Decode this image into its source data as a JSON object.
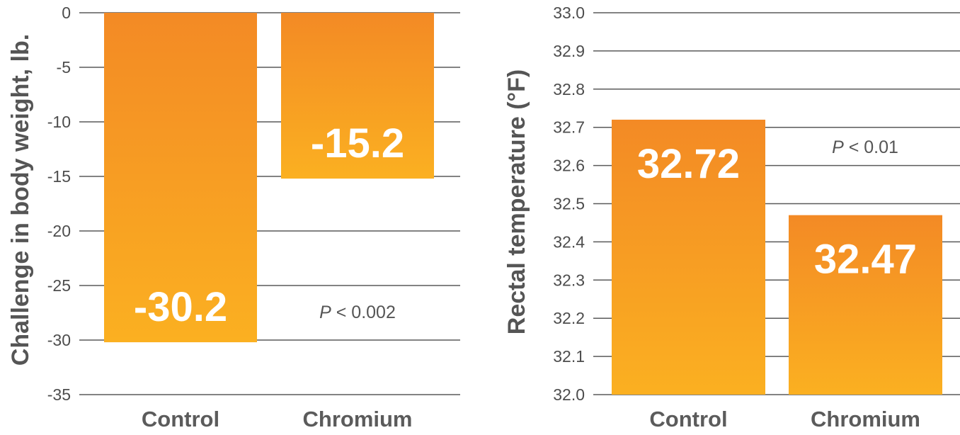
{
  "chart_data": [
    {
      "type": "bar",
      "categories": [
        "Control",
        "Chromium"
      ],
      "values": [
        -30.2,
        -15.2
      ],
      "data_labels": [
        "-30.2",
        "-15.2"
      ],
      "ylabel": "Challenge in body weight, lb.",
      "ylim": [
        -35,
        0
      ],
      "yticks": [
        "0",
        "-5",
        "-10",
        "-15",
        "-20",
        "-25",
        "-30",
        "-35"
      ],
      "annotation": {
        "italic": "P",
        "rest": " < 0.002"
      },
      "grid": true,
      "bar_color": "#f7941d"
    },
    {
      "type": "bar",
      "categories": [
        "Control",
        "Chromium"
      ],
      "values": [
        32.72,
        32.47
      ],
      "data_labels": [
        "32.72",
        "32.47"
      ],
      "ylabel": "Rectal temperature (°F)",
      "ylim": [
        32.0,
        33.0
      ],
      "yticks": [
        "33.0",
        "32.9",
        "32.8",
        "32.7",
        "32.6",
        "32.5",
        "32.4",
        "32.3",
        "32.2",
        "32.1",
        "32.0"
      ],
      "annotation": {
        "italic": "P",
        "rest": " < 0.01"
      },
      "grid": true,
      "bar_color": "#f7941d"
    }
  ]
}
